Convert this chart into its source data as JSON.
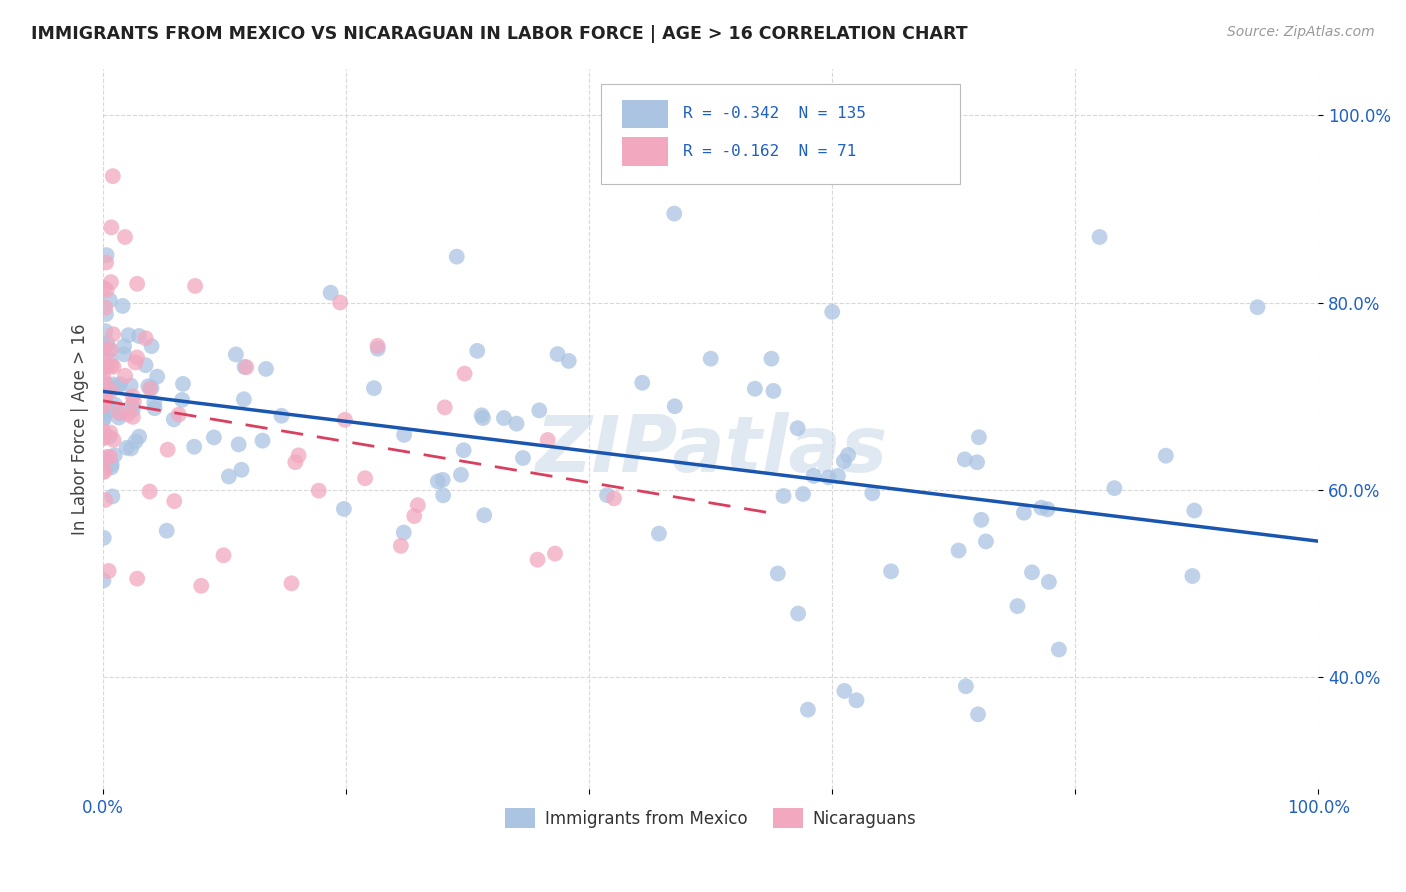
{
  "title": "IMMIGRANTS FROM MEXICO VS NICARAGUAN IN LABOR FORCE | AGE > 16 CORRELATION CHART",
  "source": "Source: ZipAtlas.com",
  "ylabel": "In Labor Force | Age > 16",
  "xlim": [
    0.0,
    1.0
  ],
  "ylim": [
    0.28,
    1.05
  ],
  "background_color": "#ffffff",
  "plot_bg_color": "#ffffff",
  "grid_color": "#d8d8d8",
  "blue_color": "#aac4e2",
  "pink_color": "#f2a8bf",
  "blue_line_color": "#1a56b0",
  "pink_line_color": "#d94060",
  "legend_R1": "-0.342",
  "legend_N1": "135",
  "legend_R2": "-0.162",
  "legend_N2": "71",
  "label1": "Immigrants from Mexico",
  "label2": "Nicaraguans",
  "watermark": "ZIPatlas",
  "blue_line_x0": 0.0,
  "blue_line_y0": 0.705,
  "blue_line_x1": 1.0,
  "blue_line_y1": 0.545,
  "pink_line_x0": 0.0,
  "pink_line_y0": 0.695,
  "pink_line_x1": 0.55,
  "pink_line_y1": 0.575
}
